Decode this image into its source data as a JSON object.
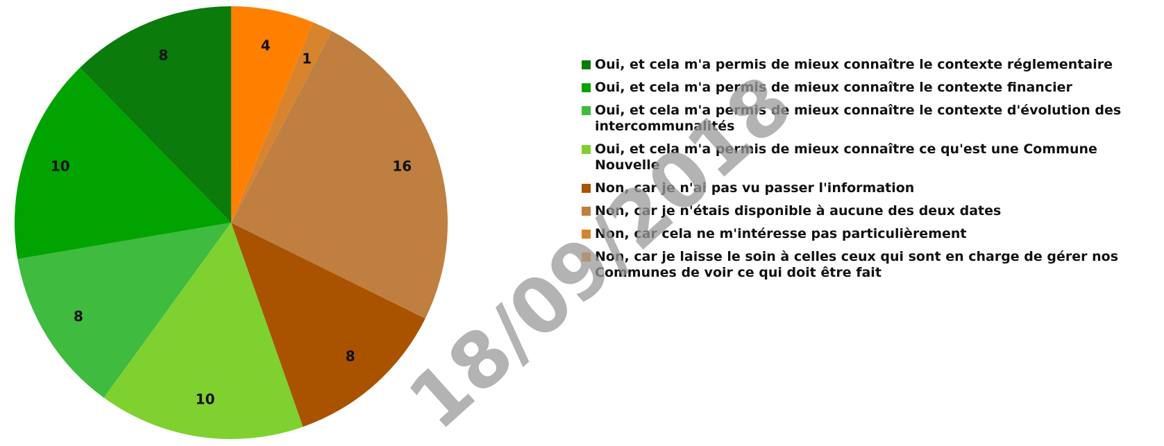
{
  "chart_data": {
    "type": "pie",
    "series": [
      {
        "name": "Oui, et cela m'a permis de mieux connaître le contexte réglementaire",
        "color": "#0b7b0b",
        "values": [
          8
        ]
      },
      {
        "name": "Oui, et cela m'a permis de mieux connaître le contexte financier",
        "color": "#00a300",
        "values": [
          10
        ]
      },
      {
        "name": "Oui, et cela m'a permis de mieux connaître le contexte d'évolution des intercommunalités",
        "color": "#3fbb3f",
        "values": [
          8
        ]
      },
      {
        "name": "Oui, et cela m'a permis de mieux connaître ce qu'est une Commune Nouvelle",
        "color": "#7fd12f",
        "values": [
          10
        ]
      },
      {
        "name": "Non, car je n'ai pas vu passer l'information",
        "color": "#a95300",
        "values": [
          8
        ]
      },
      {
        "name": "Non, car je n'étais disponible à aucune des deux dates",
        "color": "#bf7f40",
        "values": [
          16
        ]
      },
      {
        "name": "Non, car cela ne m'intéresse pas particulièrement",
        "color": "#d8842e",
        "values": [
          1
        ]
      },
      {
        "name": "Non, car je laisse le soin à celles  ceux qui sont en charge de gérer nos Communes de voir ce qui doit être fait",
        "color": "#ff8000",
        "values": [
          4
        ]
      }
    ],
    "watermark": "18/09/2018"
  }
}
